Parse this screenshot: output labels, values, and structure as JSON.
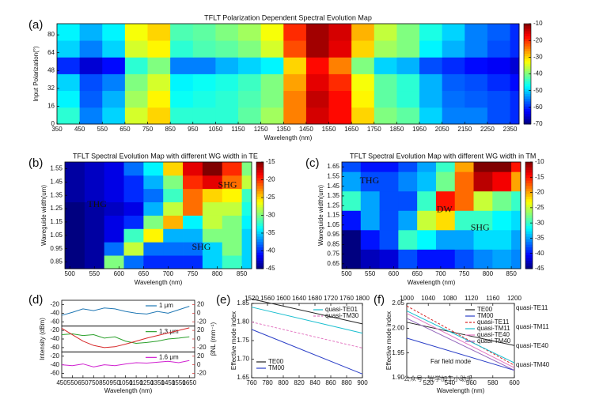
{
  "chart_data": [
    {
      "type": "heatmap",
      "label": "(a)",
      "title": "TFLT Polarization Dependent Spectral Evolution Map",
      "x_label": "Wavelength (nm)",
      "y_label": "Input Polarization(°)",
      "xlim": [
        350,
        2390
      ],
      "xticks": [
        350,
        450,
        550,
        650,
        750,
        850,
        950,
        1050,
        1150,
        1250,
        1350,
        1450,
        1550,
        1650,
        1750,
        1850,
        1950,
        2050,
        2150,
        2250,
        2350
      ],
      "ylim": [
        0,
        90
      ],
      "yticks": [
        0,
        16,
        32,
        48,
        64,
        80
      ],
      "x_bins": [
        350,
        450,
        550,
        650,
        750,
        850,
        950,
        1050,
        1150,
        1250,
        1350,
        1450,
        1550,
        1650,
        1750,
        1850,
        1950,
        2050,
        2150,
        2250,
        2350,
        2390
      ],
      "y_bins": [
        0,
        15,
        30,
        45,
        60,
        75,
        90
      ],
      "z": [
        [
          -45,
          -55,
          -50,
          -35,
          -30,
          -45,
          -45,
          -45,
          -42,
          -38,
          -25,
          -15,
          -18,
          -30,
          -40,
          -42,
          -50,
          -55,
          -55,
          -58,
          -60
        ],
        [
          -48,
          -57,
          -52,
          -38,
          -32,
          -47,
          -46,
          -45,
          -43,
          -40,
          -25,
          -14,
          -18,
          -32,
          -42,
          -45,
          -52,
          -56,
          -57,
          -58,
          -60
        ],
        [
          -50,
          -58,
          -55,
          -40,
          -35,
          -48,
          -47,
          -46,
          -44,
          -40,
          -27,
          -16,
          -20,
          -33,
          -42,
          -45,
          -52,
          -57,
          -58,
          -60,
          -62
        ],
        [
          -60,
          -65,
          -62,
          -45,
          -40,
          -55,
          -55,
          -52,
          -50,
          -48,
          -30,
          -18,
          -25,
          -40,
          -50,
          -52,
          -58,
          -60,
          -62,
          -63,
          -65
        ],
        [
          -50,
          -55,
          -50,
          -35,
          -32,
          -45,
          -43,
          -42,
          -40,
          -35,
          -22,
          -12,
          -16,
          -30,
          -38,
          -40,
          -48,
          -52,
          -55,
          -58,
          -60
        ],
        [
          -48,
          -52,
          -48,
          -33,
          -30,
          -43,
          -42,
          -40,
          -38,
          -33,
          -20,
          -12,
          -15,
          -28,
          -36,
          -40,
          -46,
          -50,
          -55,
          -57,
          -60
        ]
      ],
      "colormap": "jet",
      "colorbar": {
        "lim": [
          -70,
          -10
        ],
        "ticks": [
          -10,
          -20,
          -30,
          -40,
          -50,
          -60,
          -70
        ]
      }
    },
    {
      "type": "heatmap",
      "label": "(b)",
      "title": "TFLT Spectral Evolution Map with different WG width in TE",
      "x_label": "Wavelength (nm)",
      "y_label": "Waveguide width(um)",
      "xlim": [
        490,
        870
      ],
      "xticks": [
        500,
        550,
        600,
        650,
        700,
        750,
        800,
        850
      ],
      "ylim": [
        0.8,
        1.6
      ],
      "yticks": [
        0.85,
        0.95,
        1.05,
        1.15,
        1.25,
        1.35,
        1.45,
        1.55
      ],
      "x_bins": [
        490,
        530,
        570,
        610,
        650,
        690,
        730,
        770,
        810,
        850,
        870
      ],
      "y_bins": [
        0.8,
        0.9,
        1.0,
        1.1,
        1.2,
        1.3,
        1.4,
        1.5,
        1.6
      ],
      "z": [
        [
          -45,
          -44,
          -30,
          -38,
          -40,
          -40,
          -40,
          -35,
          -32,
          -35
        ],
        [
          -45,
          -44,
          -38,
          -28,
          -38,
          -38,
          -38,
          -35,
          -30,
          -35
        ],
        [
          -45,
          -44,
          -42,
          -32,
          -26,
          -36,
          -36,
          -30,
          -30,
          -35
        ],
        [
          -45,
          -44,
          -42,
          -40,
          -30,
          -24,
          -34,
          -28,
          -30,
          -34
        ],
        [
          -45,
          -44,
          -43,
          -42,
          -36,
          -28,
          -22,
          -28,
          -28,
          -33
        ],
        [
          -44,
          -43,
          -42,
          -40,
          -38,
          -32,
          -22,
          -25,
          -26,
          -32
        ],
        [
          -44,
          -43,
          -42,
          -40,
          -36,
          -30,
          -20,
          -18,
          -22,
          -28
        ],
        [
          -44,
          -43,
          -42,
          -38,
          -34,
          -25,
          -18,
          -15,
          -20,
          -30
        ]
      ],
      "colormap": "jet",
      "colorbar": {
        "lim": [
          -45,
          -15
        ],
        "ticks": [
          -15,
          -20,
          -25,
          -30,
          -35,
          -40,
          -45
        ]
      },
      "annotations": [
        "THG",
        "SHG",
        "SHG"
      ]
    },
    {
      "type": "heatmap",
      "label": "(c)",
      "title": "TFLT Spectral Evolution Map with different WG width in TM",
      "x_label": "Wavelength (nm)",
      "y_label": "Waveguide width(um)",
      "xlim": [
        490,
        870
      ],
      "xticks": [
        500,
        550,
        600,
        650,
        700,
        750,
        800,
        850
      ],
      "ylim": [
        0.6,
        1.7
      ],
      "yticks": [
        0.65,
        0.75,
        0.85,
        0.95,
        1.05,
        1.15,
        1.25,
        1.35,
        1.45,
        1.55,
        1.65
      ],
      "x_bins": [
        490,
        530,
        570,
        610,
        650,
        690,
        730,
        770,
        810,
        850,
        870
      ],
      "y_bins": [
        0.6,
        0.8,
        1.0,
        1.2,
        1.4,
        1.6,
        1.7
      ],
      "z": [
        [
          -45,
          -43,
          -42,
          -38,
          -40,
          -40,
          -38,
          -36,
          -35,
          -36
        ],
        [
          -45,
          -40,
          -38,
          -30,
          -32,
          -35,
          -35,
          -33,
          -33,
          -35
        ],
        [
          -40,
          -35,
          -38,
          -35,
          -25,
          -22,
          -30,
          -30,
          -32,
          -33
        ],
        [
          -30,
          -35,
          -38,
          -38,
          -30,
          -15,
          -18,
          -25,
          -28,
          -30
        ],
        [
          -35,
          -38,
          -38,
          -36,
          -34,
          -28,
          -18,
          -12,
          -14,
          -20
        ],
        [
          -38,
          -40,
          -40,
          -38,
          -35,
          -30,
          -20,
          -10,
          -10,
          -15
        ]
      ],
      "colormap": "jet",
      "colorbar": {
        "lim": [
          -45,
          -10
        ],
        "ticks": [
          -10,
          -15,
          -20,
          -25,
          -30,
          -35,
          -40,
          -45
        ]
      },
      "annotations": [
        "THG",
        "DW",
        "SHG"
      ]
    },
    {
      "type": "stacked",
      "label": "(d)",
      "x_label": "Wavelength (nm)",
      "y_label": "Intensity (dBm)",
      "y2_label": "βNL (mm⁻¹)",
      "y2_color": "#d62728",
      "x": [
        450,
        550,
        650,
        750,
        850,
        950,
        1050,
        1150,
        1250,
        1350,
        1450,
        1550,
        1650
      ],
      "xlim": [
        450,
        1700
      ],
      "xticks": [
        450,
        550,
        650,
        750,
        850,
        950,
        1050,
        1150,
        1250,
        1350,
        1450,
        1550,
        1650
      ],
      "subplots": [
        {
          "ylim": [
            -70,
            -10
          ],
          "yticks": [
            -20,
            -40,
            -60
          ],
          "y2lim": [
            -30,
            30
          ],
          "y2ticks": [
            20,
            0,
            -20
          ],
          "series": [
            {
              "name": "1 μm",
              "color": "#1f77b4",
              "values": [
                -45,
                -38,
                -30,
                -34,
                -28,
                -30,
                -36,
                -40,
                -42,
                -36,
                -40,
                -32,
                -24
              ]
            }
          ]
        },
        {
          "ylim": [
            -70,
            -10
          ],
          "yticks": [
            -20,
            -40,
            -60
          ],
          "y2lim": [
            -30,
            30
          ],
          "y2ticks": [
            20,
            0,
            -20
          ],
          "series": [
            {
              "name": "1.3 μm",
              "color": "#2ca02c",
              "values": [
                -30,
                -28,
                -32,
                -30,
                -38,
                -35,
                -45,
                -50,
                -48,
                -45,
                -40,
                -38,
                -35
              ]
            },
            {
              "color": "#d62728",
              "axis": "y2",
              "values": [
                25,
                10,
                -5,
                -15,
                -20,
                -18,
                -12,
                -5,
                2,
                8,
                14,
                20,
                26
              ]
            }
          ]
        },
        {
          "ylim": [
            -70,
            -10
          ],
          "yticks": [
            -20,
            -40,
            -60
          ],
          "y2lim": [
            -30,
            30
          ],
          "y2ticks": [
            20,
            0,
            -20
          ],
          "series": [
            {
              "name": "1.6 μm",
              "color": "#d020d0",
              "values": [
                -40,
                -42,
                -38,
                -45,
                -40,
                -42,
                -38,
                -35,
                -36,
                -34,
                -32,
                -35,
                -30
              ]
            }
          ]
        }
      ]
    },
    {
      "type": "line",
      "label": "(e)",
      "y_label": "Effective mode index",
      "x_color": "#d62728",
      "x": [
        760,
        900
      ],
      "xlim": [
        760,
        900
      ],
      "xticks": [
        760,
        780,
        800,
        820,
        840,
        860,
        880,
        900
      ],
      "x2lim": [
        1520,
        1800
      ],
      "x2ticks": [
        1520,
        1560,
        1600,
        1640,
        1680,
        1720,
        1760,
        1800
      ],
      "ylim": [
        1.65,
        1.85
      ],
      "yticks": [
        1.65,
        {
          "value": 1.7,
          "label": "1.70"
        },
        1.75,
        {
          "value": 1.8,
          "label": "1.80"
        },
        1.85
      ],
      "series": [
        {
          "name": "quasi-TE01",
          "color": "#17becf",
          "values": [
            1.84,
            1.77
          ],
          "legend": "upper right"
        },
        {
          "name": "quasi-TM30",
          "color": "#e377c2",
          "dash": true,
          "values": [
            1.8,
            1.73
          ],
          "legend": "upper right"
        },
        {
          "name": "TE00",
          "color": "#222222",
          "values": [
            1.862,
            1.795
          ],
          "legend": "lower left"
        },
        {
          "name": "TM00",
          "color": "#2b3fc7",
          "values": [
            1.78,
            1.66
          ],
          "legend": "lower left"
        }
      ]
    },
    {
      "type": "line",
      "label": "(f)",
      "y_label": "Effective mode index",
      "x_label": "Wavelength (nm)",
      "x_color": "#2ca02c",
      "x": [
        500,
        600
      ],
      "xlim": [
        500,
        600
      ],
      "xticks": [
        520,
        540,
        560,
        580,
        600
      ],
      "x2lim": [
        1000,
        1200
      ],
      "x2ticks": [
        1000,
        1040,
        1080,
        1120,
        1160,
        1200
      ],
      "ylim": [
        1.9,
        2.05
      ],
      "yticks": [
        {
          "value": 1.9,
          "label": "1.90"
        },
        1.95,
        {
          "value": 2,
          "label": "2.00"
        },
        2.05
      ],
      "series": [
        {
          "name": "TE00",
          "color": "#222222",
          "values": [
            2.012,
            1.965
          ],
          "legend": "upper right"
        },
        {
          "name": "TM00",
          "color": "#2b3fc7",
          "values": [
            1.98,
            1.915
          ],
          "legend": "upper right"
        },
        {
          "name": "quasi-TE11",
          "color": "#d62728",
          "dash": true,
          "values": [
            2.045,
            1.925
          ],
          "legend": "upper right"
        },
        {
          "name": "quasi-TM11",
          "color": "#17becf",
          "values": [
            2.035,
            1.93
          ],
          "legend": "upper right"
        },
        {
          "name": "quasi-TE40",
          "color": "#e377c2",
          "values": [
            2.03,
            1.92
          ],
          "legend": "upper right"
        },
        {
          "name": "quasi-TM40",
          "color": "#9467bd",
          "values": [
            2.02,
            1.915
          ],
          "legend": "upper right"
        }
      ],
      "annotations": [
        "Far field mode"
      ],
      "mode_labels": [
        "quasi-TE11",
        "quasi-TM11",
        "quasi-TE40",
        "quasi-TM40"
      ],
      "watermark": "公众号 · 光学加工小助手"
    }
  ]
}
